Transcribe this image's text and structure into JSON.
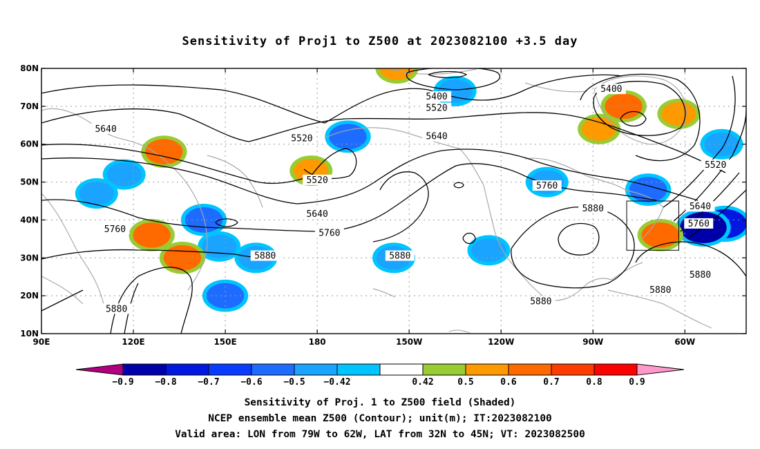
{
  "chart_data": {
    "type": "heatmap",
    "title": "Sensitivity of Proj1 to Z500 at 2023082100 +3.5 day",
    "x_ticks": [
      "90E",
      "120E",
      "150E",
      "180",
      "150W",
      "120W",
      "90W",
      "60W"
    ],
    "y_ticks": [
      "80N",
      "70N",
      "60N",
      "50N",
      "40N",
      "30N",
      "20N",
      "10N"
    ],
    "xlim_deg_east": [
      90,
      320
    ],
    "ylim_deg_north": [
      10,
      80
    ],
    "grid": true,
    "colorbar": {
      "labels": [
        "-0.9",
        "-0.8",
        "-0.7",
        "-0.6",
        "-0.5",
        "-0.42",
        "0.42",
        "0.5",
        "0.6",
        "0.7",
        "0.8",
        "0.9"
      ],
      "colors": [
        "#b0007f",
        "#0000a8",
        "#0018e0",
        "#0a3cff",
        "#1e6cff",
        "#1aa4ff",
        "#00c4ff",
        "#ffffff",
        "#99cc33",
        "#ff9900",
        "#ff6a00",
        "#ff3c00",
        "#ff0000",
        "#ff99cc"
      ]
    },
    "contours": {
      "levels": [
        5400,
        5520,
        5640,
        5760,
        5880
      ],
      "labels": [
        {
          "text": "5640",
          "lon": 111,
          "lat": 64
        },
        {
          "text": "5520",
          "lon": 175,
          "lat": 61.5
        },
        {
          "text": "5400",
          "lon": 219,
          "lat": 72.5
        },
        {
          "text": "5520",
          "lon": 219,
          "lat": 69.5
        },
        {
          "text": "5640",
          "lon": 219,
          "lat": 62
        },
        {
          "text": "5400",
          "lon": 276,
          "lat": 74.5
        },
        {
          "text": "5520",
          "lon": 180,
          "lat": 50.5
        },
        {
          "text": "5640",
          "lon": 180,
          "lat": 41.5
        },
        {
          "text": "5760",
          "lon": 184,
          "lat": 36.5
        },
        {
          "text": "5760",
          "lon": 114,
          "lat": 37.5
        },
        {
          "text": "5880",
          "lon": 163,
          "lat": 30.5
        },
        {
          "text": "5880",
          "lon": 114.5,
          "lat": 16.5
        },
        {
          "text": "5880",
          "lon": 207,
          "lat": 30.5
        },
        {
          "text": "5760",
          "lon": 255,
          "lat": 49
        },
        {
          "text": "5880",
          "lon": 270,
          "lat": 43
        },
        {
          "text": "5880",
          "lon": 292,
          "lat": 21.5
        },
        {
          "text": "5640",
          "lon": 305,
          "lat": 43.5
        },
        {
          "text": "5760",
          "lon": 304.5,
          "lat": 39
        },
        {
          "text": "5880",
          "lon": 305,
          "lat": 25.5
        },
        {
          "text": "5880",
          "lon": 253,
          "lat": 18.5
        },
        {
          "text": "5520",
          "lon": 310,
          "lat": 54.5
        }
      ]
    },
    "valid_box": {
      "lon_from": 281,
      "lon_to": 298,
      "lat_from": 32,
      "lat_to": 45
    },
    "shading": [
      {
        "lon": 190,
        "lat": 62,
        "value": -0.6
      },
      {
        "lon": 225,
        "lat": 74,
        "value": -0.5
      },
      {
        "lon": 255,
        "lat": 50,
        "value": -0.5
      },
      {
        "lon": 288,
        "lat": 48,
        "value": -0.6
      },
      {
        "lon": 313,
        "lat": 39,
        "value": -0.8
      },
      {
        "lon": 306,
        "lat": 38,
        "value": -0.9
      },
      {
        "lon": 148,
        "lat": 33,
        "value": -0.5
      },
      {
        "lon": 143,
        "lat": 40,
        "value": -0.6
      },
      {
        "lon": 236,
        "lat": 32,
        "value": -0.5
      },
      {
        "lon": 160,
        "lat": 30,
        "value": -0.5
      },
      {
        "lon": 117,
        "lat": 52,
        "value": -0.5
      },
      {
        "lon": 108,
        "lat": 47,
        "value": -0.5
      },
      {
        "lon": 205,
        "lat": 30,
        "value": -0.5
      },
      {
        "lon": 150,
        "lat": 20,
        "value": -0.6
      },
      {
        "lon": 312,
        "lat": 60,
        "value": -0.5
      },
      {
        "lon": 280,
        "lat": 70,
        "value": 0.6
      },
      {
        "lon": 298,
        "lat": 68,
        "value": 0.5
      },
      {
        "lon": 136,
        "lat": 30,
        "value": 0.6
      },
      {
        "lon": 126,
        "lat": 36,
        "value": 0.6
      },
      {
        "lon": 130,
        "lat": 58,
        "value": 0.6
      },
      {
        "lon": 178,
        "lat": 53,
        "value": 0.5
      },
      {
        "lon": 292,
        "lat": 36,
        "value": 0.6
      },
      {
        "lon": 272,
        "lat": 64,
        "value": 0.5
      },
      {
        "lon": 206,
        "lat": 80,
        "value": 0.5
      }
    ]
  },
  "footer": {
    "line1": "Sensitivity of Proj. 1 to Z500 field (Shaded)",
    "line2": "NCEP ensemble mean Z500 (Contour); unit(m); IT:2023082100",
    "line3": "Valid area: LON from 79W to 62W, LAT from 32N to 45N; VT: 2023082500"
  }
}
